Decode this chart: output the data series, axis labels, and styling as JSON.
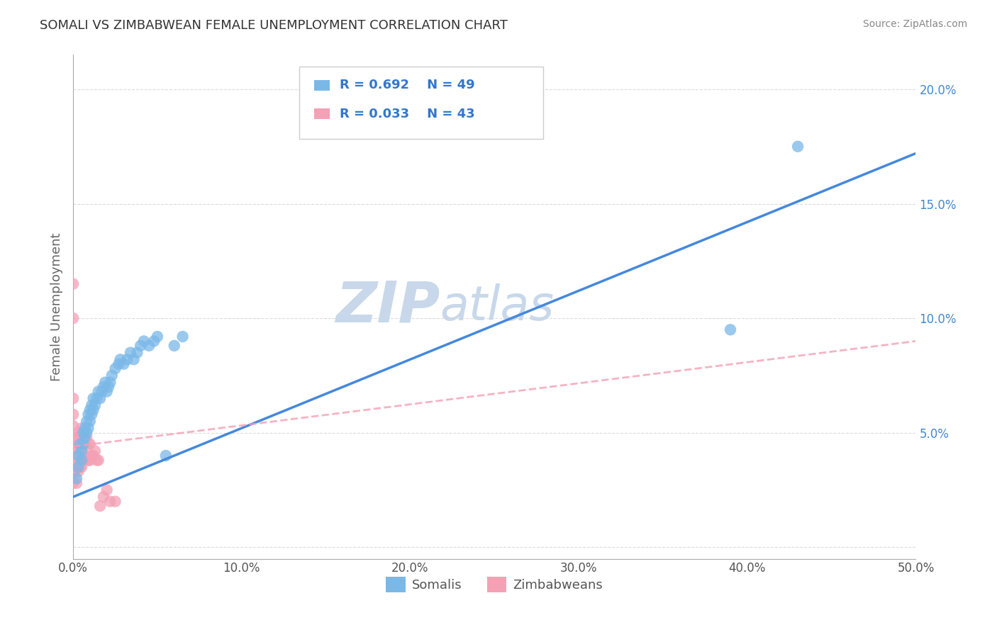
{
  "title": "SOMALI VS ZIMBABWEAN FEMALE UNEMPLOYMENT CORRELATION CHART",
  "source": "Source: ZipAtlas.com",
  "ylabel": "Female Unemployment",
  "xlim": [
    0,
    0.5
  ],
  "ylim": [
    -0.005,
    0.215
  ],
  "xticks": [
    0.0,
    0.1,
    0.2,
    0.3,
    0.4,
    0.5
  ],
  "xtick_labels": [
    "0.0%",
    "10.0%",
    "20.0%",
    "30.0%",
    "40.0%",
    "50.0%"
  ],
  "yticks": [
    0.0,
    0.05,
    0.1,
    0.15,
    0.2
  ],
  "ytick_labels": [
    "",
    "5.0%",
    "10.0%",
    "15.0%",
    "20.0%"
  ],
  "somali_R": 0.692,
  "somali_N": 49,
  "zimbabwe_R": 0.033,
  "zimbabwe_N": 43,
  "somali_color": "#7ab8e8",
  "zimbabwe_color": "#f4a0b5",
  "regression_blue": "#4488dd",
  "regression_pink": "#f4a0b5",
  "watermark_zip": "ZIP",
  "watermark_atlas": "atlas",
  "watermark_color": "#c8d8ea",
  "somali_x": [
    0.002,
    0.003,
    0.003,
    0.004,
    0.005,
    0.005,
    0.006,
    0.006,
    0.007,
    0.007,
    0.008,
    0.008,
    0.009,
    0.009,
    0.01,
    0.01,
    0.011,
    0.011,
    0.012,
    0.012,
    0.013,
    0.014,
    0.015,
    0.016,
    0.017,
    0.018,
    0.019,
    0.02,
    0.021,
    0.022,
    0.023,
    0.025,
    0.027,
    0.028,
    0.03,
    0.032,
    0.034,
    0.036,
    0.038,
    0.04,
    0.042,
    0.045,
    0.048,
    0.05,
    0.055,
    0.06,
    0.065,
    0.39,
    0.43
  ],
  "somali_y": [
    0.03,
    0.035,
    0.04,
    0.045,
    0.038,
    0.042,
    0.045,
    0.05,
    0.048,
    0.052,
    0.05,
    0.055,
    0.052,
    0.058,
    0.055,
    0.06,
    0.058,
    0.062,
    0.06,
    0.065,
    0.062,
    0.065,
    0.068,
    0.065,
    0.068,
    0.07,
    0.072,
    0.068,
    0.07,
    0.072,
    0.075,
    0.078,
    0.08,
    0.082,
    0.08,
    0.082,
    0.085,
    0.082,
    0.085,
    0.088,
    0.09,
    0.088,
    0.09,
    0.092,
    0.04,
    0.088,
    0.092,
    0.095,
    0.175
  ],
  "zimbabwe_x": [
    0.0,
    0.0,
    0.0,
    0.0,
    0.0,
    0.0,
    0.0,
    0.0,
    0.0,
    0.0,
    0.001,
    0.001,
    0.002,
    0.002,
    0.002,
    0.003,
    0.003,
    0.003,
    0.004,
    0.004,
    0.005,
    0.005,
    0.005,
    0.006,
    0.006,
    0.007,
    0.007,
    0.008,
    0.008,
    0.009,
    0.009,
    0.01,
    0.01,
    0.011,
    0.012,
    0.013,
    0.014,
    0.015,
    0.016,
    0.018,
    0.02,
    0.022,
    0.025
  ],
  "zimbabwe_y": [
    0.028,
    0.033,
    0.038,
    0.043,
    0.048,
    0.053,
    0.058,
    0.065,
    0.1,
    0.115,
    0.033,
    0.043,
    0.028,
    0.038,
    0.048,
    0.033,
    0.04,
    0.05,
    0.035,
    0.045,
    0.035,
    0.042,
    0.052,
    0.038,
    0.048,
    0.038,
    0.045,
    0.04,
    0.048,
    0.038,
    0.045,
    0.038,
    0.045,
    0.04,
    0.04,
    0.042,
    0.038,
    0.038,
    0.018,
    0.022,
    0.025,
    0.02,
    0.02
  ],
  "blue_line_x0": 0.0,
  "blue_line_y0": 0.022,
  "blue_line_x1": 0.5,
  "blue_line_y1": 0.172,
  "pink_line_x0": 0.0,
  "pink_line_y0": 0.044,
  "pink_line_x1": 0.5,
  "pink_line_y1": 0.09
}
